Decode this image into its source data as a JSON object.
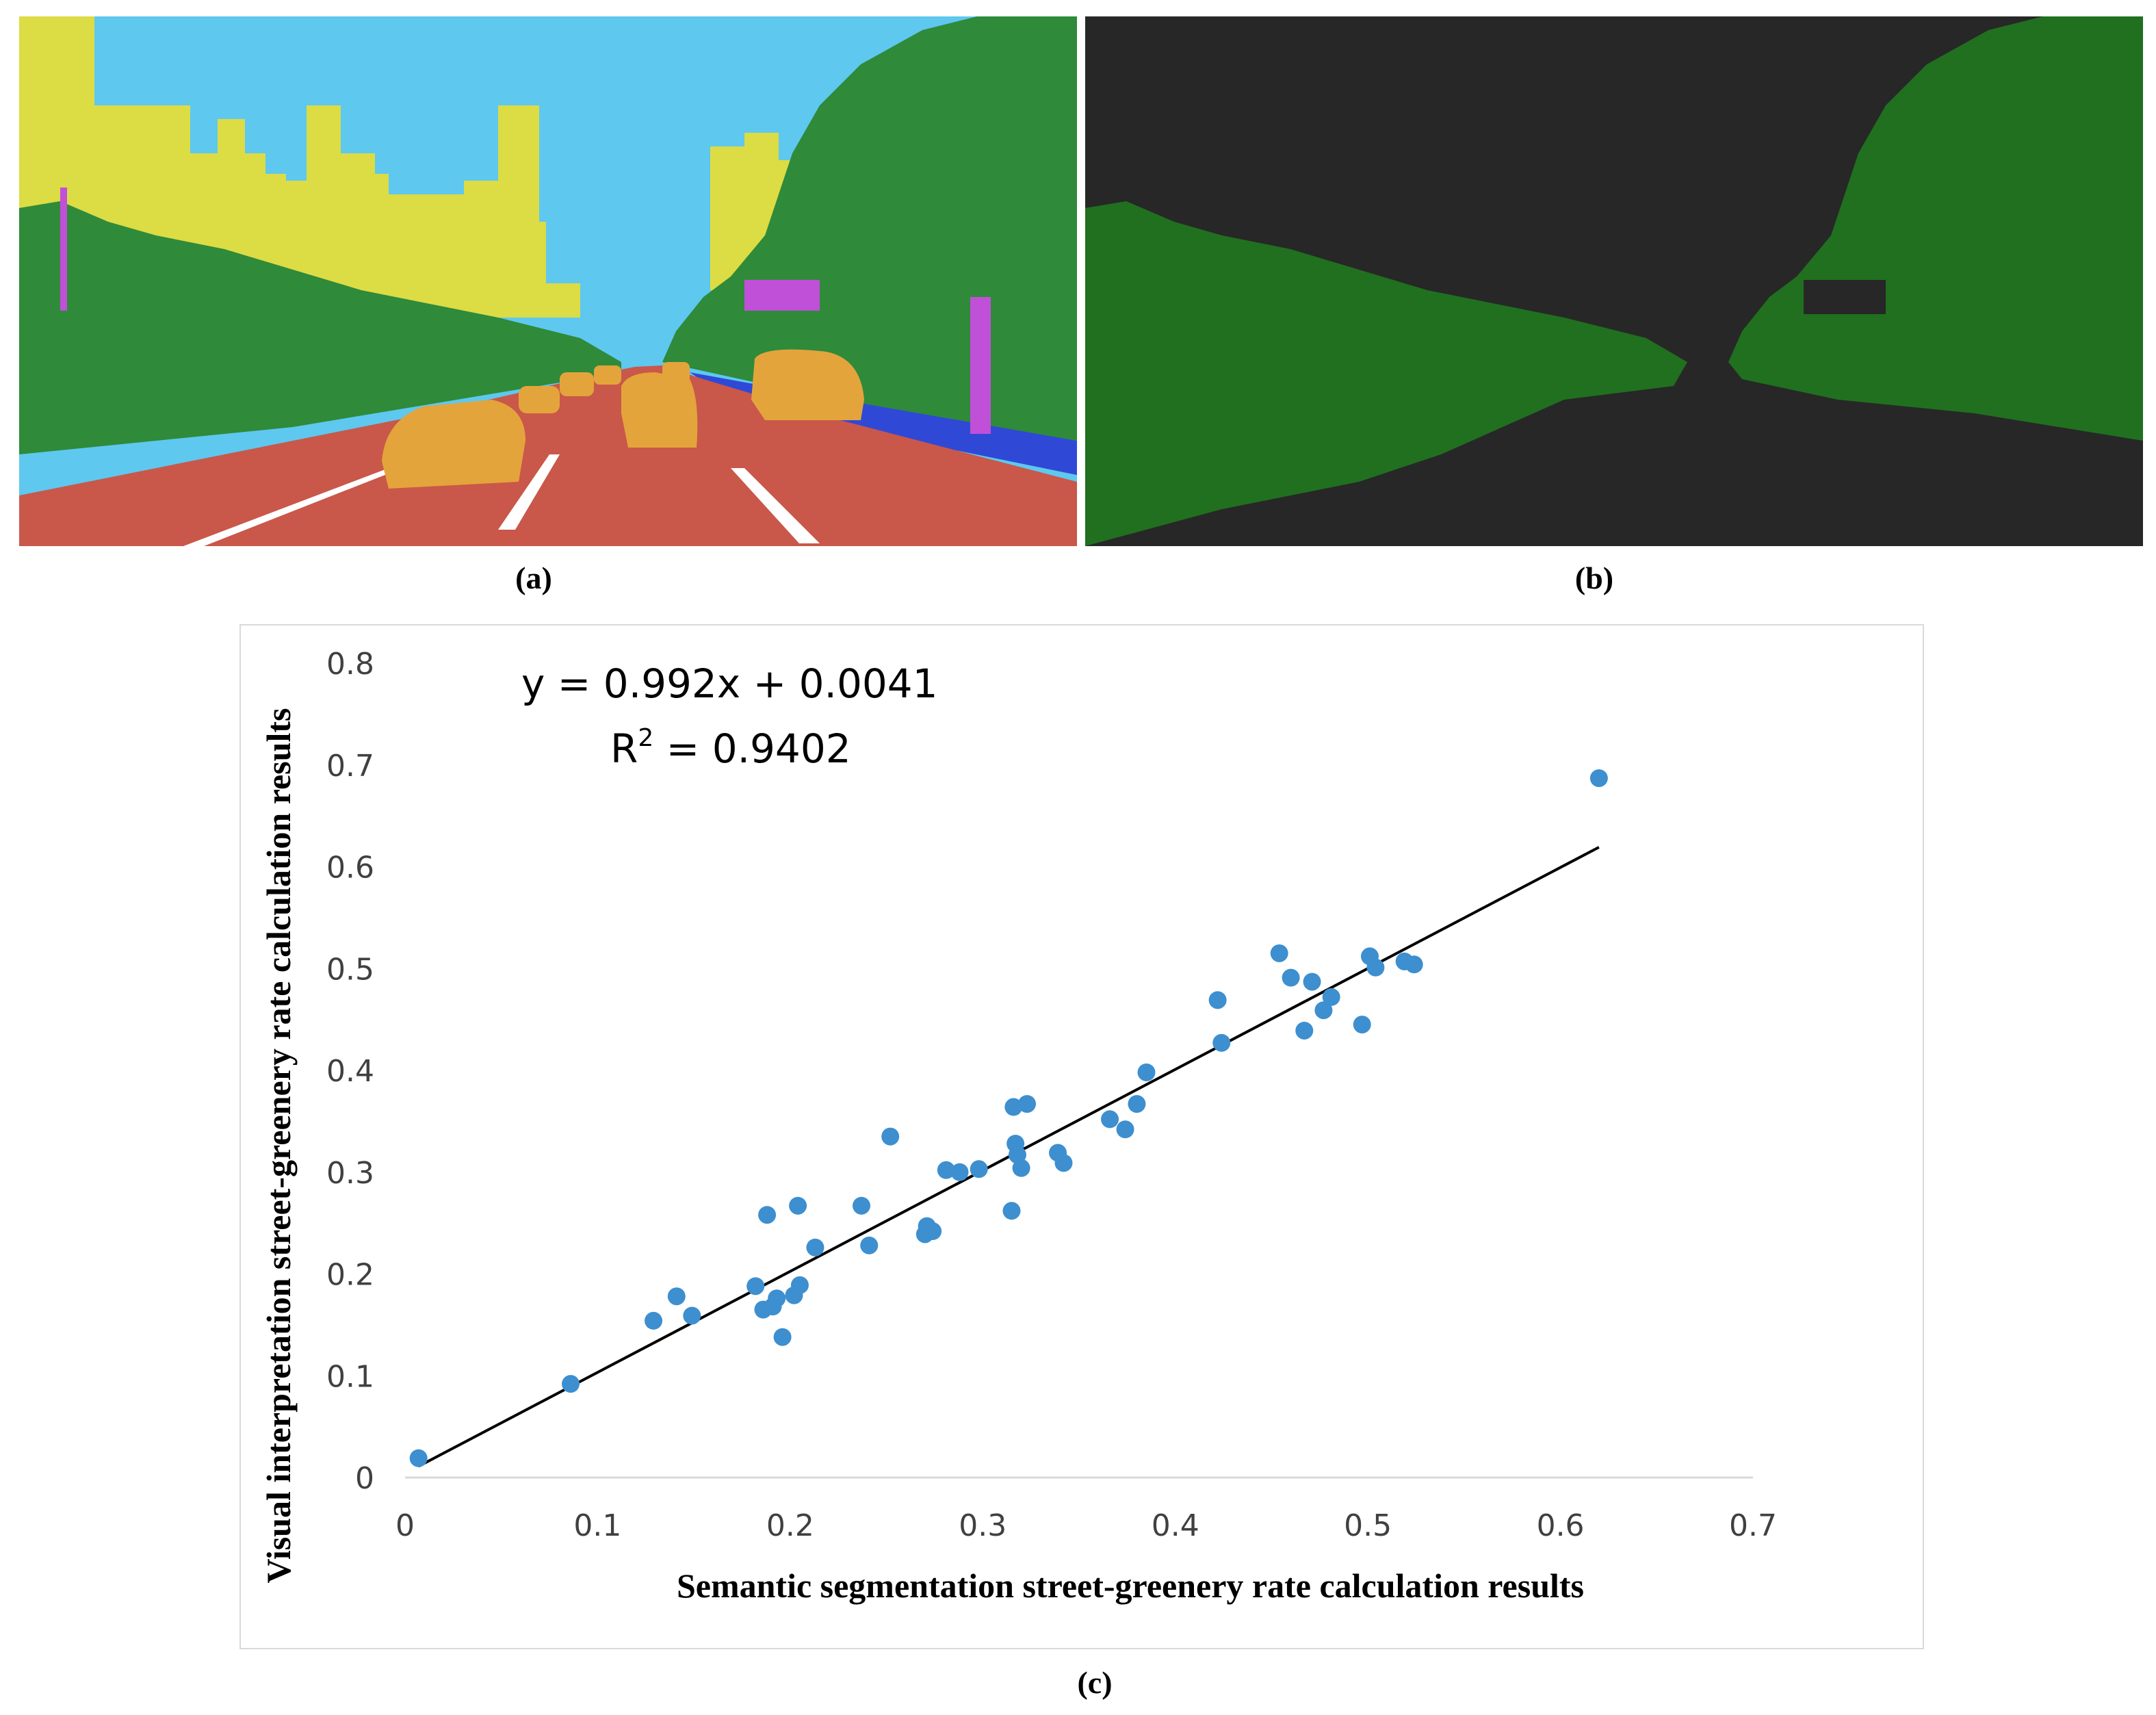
{
  "panels": {
    "a": {
      "caption": "(a)",
      "image": "semantic-segmentation-street-scene"
    },
    "b": {
      "caption": "(b)",
      "image": "greenery-mask"
    },
    "c": {
      "caption": "(c)"
    }
  },
  "colors": {
    "sky": "#5ec8ef",
    "building": "#dcdc44",
    "vegetation": "#2f8a3a",
    "road": "#c9574a",
    "vehicle": "#e3a43c",
    "pole": "#c050d8",
    "sidewalk": "#2f49d6",
    "mask_background": "#272727",
    "mask_green": "#20701f",
    "point": "#3d8fcf",
    "trendline": "#000000"
  },
  "chart_data": {
    "type": "scatter",
    "xlabel": "Semantic segmentation street-greenery rate calculation results",
    "ylabel": "Visual interpretation street-greenery rate calculation results",
    "xlim": [
      0,
      0.7
    ],
    "ylim": [
      0,
      0.8
    ],
    "xticks": [
      "0",
      "0.1",
      "0.2",
      "0.3",
      "0.4",
      "0.5",
      "0.6",
      "0.7"
    ],
    "yticks": [
      "0",
      "0.1",
      "0.2",
      "0.3",
      "0.4",
      "0.5",
      "0.6",
      "0.7",
      "0.8"
    ],
    "grid": false,
    "trendline": {
      "slope": 0.992,
      "intercept": 0.0041,
      "x_range": [
        0.007,
        0.62
      ]
    },
    "equation": "y = 0.992x + 0.0041",
    "r2_prefix": "R",
    "r2_sup": "2",
    "r2_value": " = 0.9402",
    "points": [
      [
        0.007,
        0.019
      ],
      [
        0.086,
        0.092
      ],
      [
        0.129,
        0.154
      ],
      [
        0.141,
        0.178
      ],
      [
        0.149,
        0.159
      ],
      [
        0.182,
        0.188
      ],
      [
        0.186,
        0.165
      ],
      [
        0.188,
        0.258
      ],
      [
        0.191,
        0.168
      ],
      [
        0.193,
        0.176
      ],
      [
        0.196,
        0.138
      ],
      [
        0.202,
        0.179
      ],
      [
        0.204,
        0.267
      ],
      [
        0.205,
        0.189
      ],
      [
        0.213,
        0.226
      ],
      [
        0.237,
        0.267
      ],
      [
        0.241,
        0.228
      ],
      [
        0.252,
        0.335
      ],
      [
        0.27,
        0.239
      ],
      [
        0.271,
        0.247
      ],
      [
        0.274,
        0.242
      ],
      [
        0.281,
        0.302
      ],
      [
        0.288,
        0.3
      ],
      [
        0.298,
        0.303
      ],
      [
        0.315,
        0.262
      ],
      [
        0.316,
        0.364
      ],
      [
        0.317,
        0.328
      ],
      [
        0.318,
        0.317
      ],
      [
        0.32,
        0.304
      ],
      [
        0.323,
        0.367
      ],
      [
        0.339,
        0.319
      ],
      [
        0.342,
        0.309
      ],
      [
        0.366,
        0.352
      ],
      [
        0.374,
        0.342
      ],
      [
        0.38,
        0.367
      ],
      [
        0.385,
        0.398
      ],
      [
        0.422,
        0.469
      ],
      [
        0.424,
        0.427
      ],
      [
        0.454,
        0.515
      ],
      [
        0.46,
        0.491
      ],
      [
        0.467,
        0.439
      ],
      [
        0.471,
        0.487
      ],
      [
        0.477,
        0.459
      ],
      [
        0.481,
        0.472
      ],
      [
        0.497,
        0.445
      ],
      [
        0.501,
        0.512
      ],
      [
        0.504,
        0.501
      ],
      [
        0.519,
        0.507
      ],
      [
        0.524,
        0.504
      ],
      [
        0.62,
        0.687
      ]
    ]
  }
}
